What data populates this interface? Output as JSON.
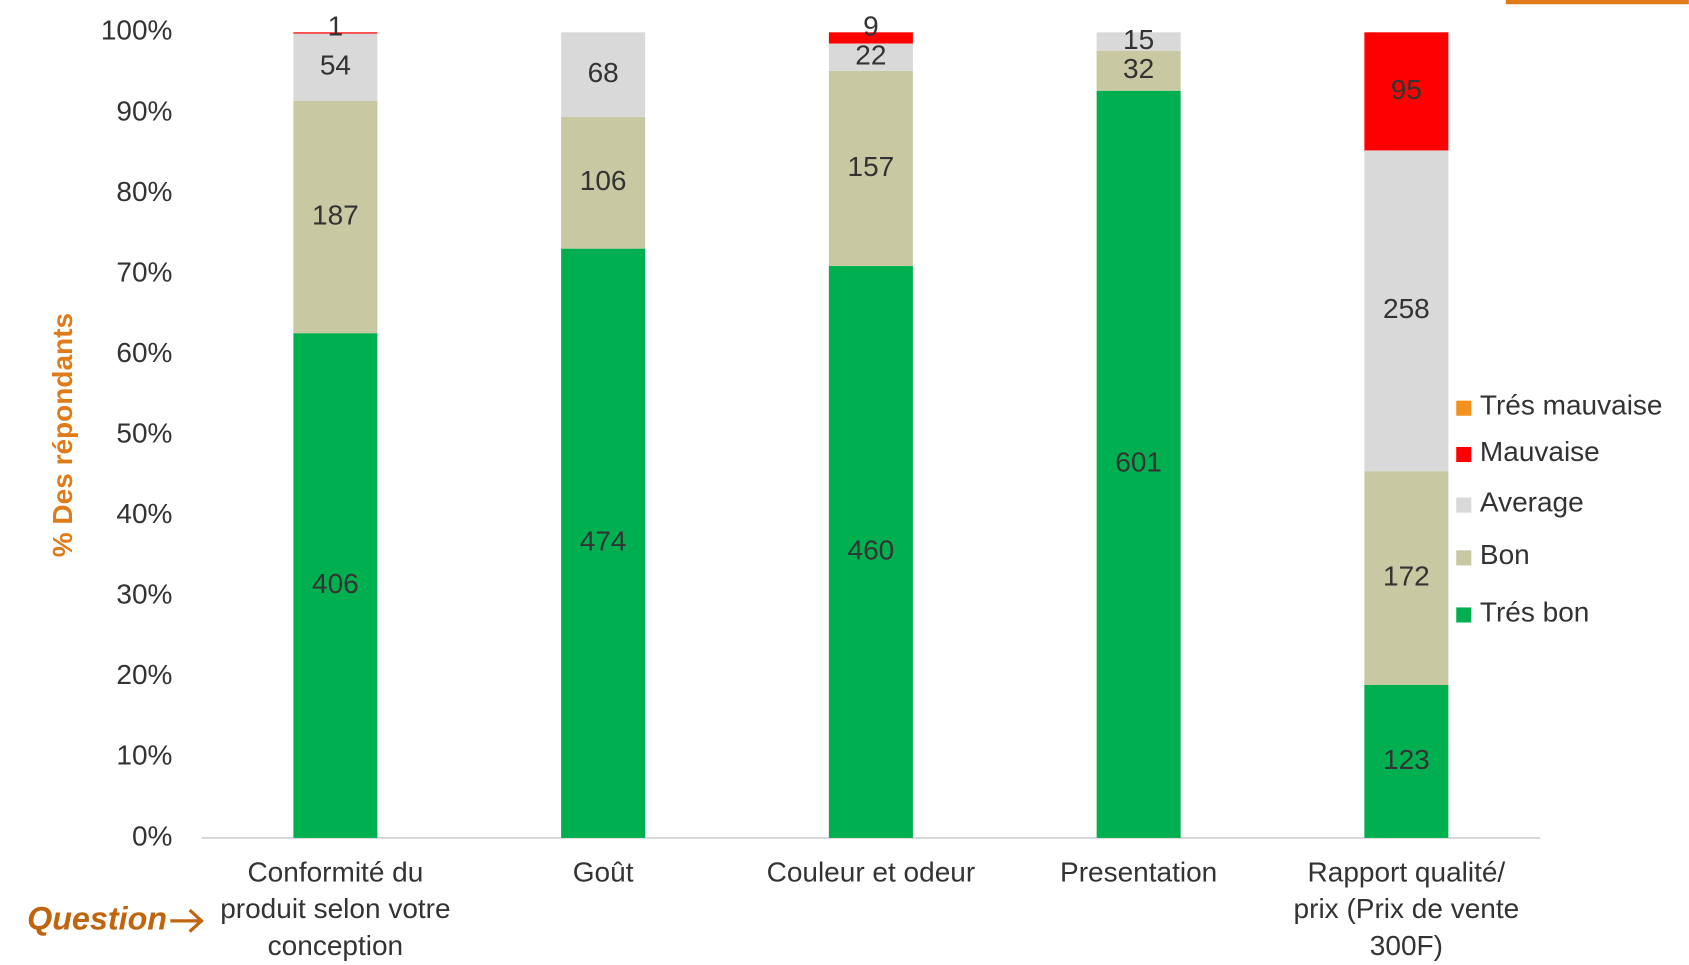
{
  "chart_data": {
    "type": "bar",
    "stacking": "percent",
    "y_label": "% Des répondants",
    "annotation": "Question",
    "categories": [
      "Conformité du produit selon votre conception",
      "Goût",
      "Couleur et odeur",
      "Presentation",
      "Rapport qualité/ prix (Prix de vente 300F)"
    ],
    "series": [
      {
        "name": "Trés bon",
        "color": "#00b050",
        "values": [
          406,
          474,
          460,
          601,
          123
        ]
      },
      {
        "name": "Bon",
        "color": "#c8c8a2",
        "values": [
          187,
          106,
          157,
          32,
          172
        ]
      },
      {
        "name": "Average",
        "color": "#d9d9d9",
        "values": [
          54,
          68,
          22,
          15,
          258
        ]
      },
      {
        "name": "Mauvaise",
        "color": "#ff0000",
        "values": [
          1,
          null,
          9,
          null,
          95
        ]
      },
      {
        "name": "Trés mauvaise",
        "color": "#f4901e",
        "values": [
          null,
          null,
          null,
          null,
          null
        ]
      }
    ],
    "ylim": [
      0,
      100
    ],
    "yticks": [
      {
        "value": 0,
        "label": "0%"
      },
      {
        "value": 10,
        "label": "10%"
      },
      {
        "value": 20,
        "label": "20%"
      },
      {
        "value": 30,
        "label": "30%"
      },
      {
        "value": 40,
        "label": "40%"
      },
      {
        "value": 50,
        "label": "50%"
      },
      {
        "value": 60,
        "label": "60%"
      },
      {
        "value": 70,
        "label": "70%"
      },
      {
        "value": 80,
        "label": "80%"
      },
      {
        "value": 90,
        "label": "90%"
      },
      {
        "value": 100,
        "label": "100%"
      }
    ],
    "legend": "right"
  }
}
